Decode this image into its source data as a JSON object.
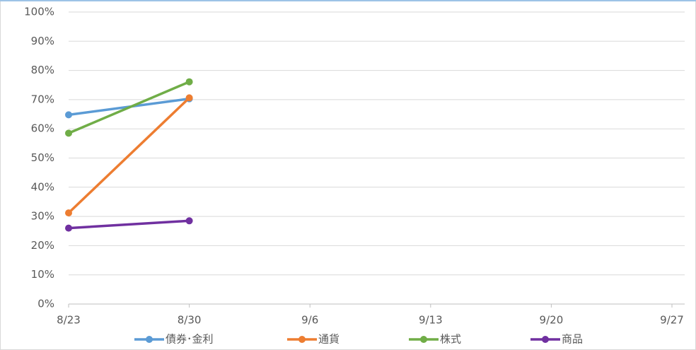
{
  "chart_data": {
    "type": "line",
    "categories": [
      "8/23",
      "8/30",
      "9/6",
      "9/13",
      "9/20",
      "9/27"
    ],
    "series": [
      {
        "name": "債券･金利",
        "color": "#5b9bd5",
        "values": [
          64.8,
          70.3,
          null,
          null,
          null,
          null
        ]
      },
      {
        "name": "通貨",
        "color": "#ed7d31",
        "values": [
          31.2,
          70.6,
          null,
          null,
          null,
          null
        ]
      },
      {
        "name": "株式",
        "color": "#70ad47",
        "values": [
          58.5,
          76.1,
          null,
          null,
          null,
          null
        ]
      },
      {
        "name": "商品",
        "color": "#7030a0",
        "values": [
          26.0,
          28.5,
          null,
          null,
          null,
          null
        ]
      }
    ],
    "ylim": [
      0,
      100
    ],
    "yticks": [
      {
        "value": 0,
        "label": "0%"
      },
      {
        "value": 10,
        "label": "10%"
      },
      {
        "value": 20,
        "label": "20%"
      },
      {
        "value": 30,
        "label": "30%"
      },
      {
        "value": 40,
        "label": "40%"
      },
      {
        "value": 50,
        "label": "50%"
      },
      {
        "value": 60,
        "label": "60%"
      },
      {
        "value": 70,
        "label": "70%"
      },
      {
        "value": 80,
        "label": "80%"
      },
      {
        "value": 90,
        "label": "90%"
      },
      {
        "value": 100,
        "label": "100%"
      }
    ],
    "grid": true,
    "legend": "bottom"
  }
}
